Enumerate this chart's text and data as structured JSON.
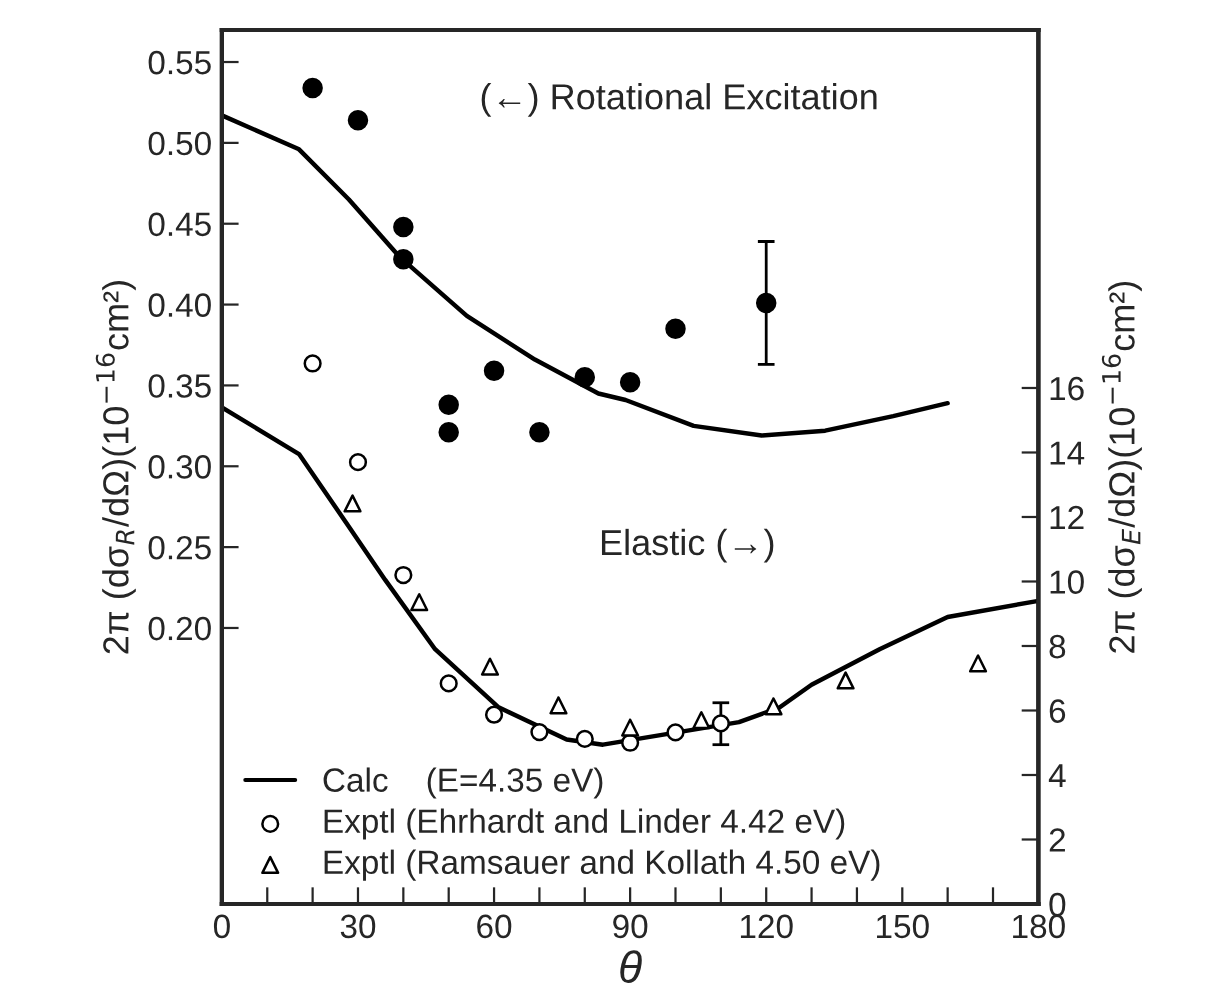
{
  "chart_data": {
    "type": "scatter",
    "xlabel": "θ",
    "ylabel": "2π (dσ$_{R}$/dΩ)(10$^{−16}$cm²)",
    "y2label": "2π (dσ$_{E}$/dΩ)(10$^{−16}$cm²)",
    "annotations": [
      "(←) Rotational Excitation",
      "Elastic (→)"
    ],
    "xlim": [
      0,
      180
    ],
    "xticks": [
      0,
      {
        "value": 10,
        "label": null
      },
      {
        "value": 20,
        "label": null
      },
      30,
      {
        "value": 40,
        "label": null
      },
      {
        "value": 50,
        "label": null
      },
      60,
      {
        "value": 70,
        "label": null
      },
      {
        "value": 80,
        "label": null
      },
      90,
      {
        "value": 100,
        "label": null
      },
      {
        "value": 110,
        "label": null
      },
      120,
      {
        "value": 130,
        "label": null
      },
      {
        "value": 140,
        "label": null
      },
      150,
      {
        "value": 160,
        "label": null
      },
      {
        "value": 170,
        "label": null
      },
      180
    ],
    "ylim": [
      0.0293,
      0.5698
    ],
    "yticks": [
      {
        "value": 0.2,
        "label": "0.20"
      },
      {
        "value": 0.25,
        "label": "0.25"
      },
      {
        "value": 0.3,
        "label": "0.30"
      },
      {
        "value": 0.35,
        "label": "0.35"
      },
      {
        "value": 0.4,
        "label": "0.40"
      },
      {
        "value": 0.45,
        "label": "0.45"
      },
      {
        "value": 0.5,
        "label": "0.50"
      },
      {
        "value": 0.55,
        "label": "0.55"
      }
    ],
    "y2lim": [
      0,
      27.1
    ],
    "y2ticks": [
      0,
      2,
      4,
      6,
      8,
      10,
      12,
      14,
      16
    ],
    "legend": "bottom left",
    "series": [
      {
        "type": "line",
        "name": "Calc    (E=4.35 eV)",
        "color": "#000000",
        "x": [
          0,
          17,
          28,
          39,
          54,
          69,
          83,
          89,
          104,
          119,
          133,
          148,
          160
        ],
        "values": [
          0.517,
          0.496,
          0.465,
          0.43,
          0.393,
          0.366,
          0.345,
          0.341,
          0.325,
          0.319,
          0.322,
          0.331,
          0.339
        ]
      },
      {
        "type": "line",
        "axis": "y2",
        "color": "#000000",
        "x": [
          0,
          17,
          28,
          36,
          47,
          61,
          76,
          84,
          114,
          123,
          130,
          145,
          160,
          180
        ],
        "values": [
          15.4,
          13.95,
          11.7,
          10.05,
          7.9,
          6.1,
          5.1,
          4.94,
          5.64,
          6.1,
          6.8,
          7.9,
          8.9,
          9.4
        ]
      },
      {
        "marker": "circle",
        "color": "#000000",
        "x": [
          20,
          30,
          40,
          40,
          50,
          50,
          60,
          70,
          80,
          90,
          100,
          120
        ],
        "values": [
          0.534,
          0.514,
          0.448,
          0.428,
          0.338,
          0.321,
          0.359,
          0.321,
          0.355,
          0.352,
          0.385,
          0.401
        ],
        "errors": [
          null,
          null,
          null,
          null,
          null,
          null,
          null,
          null,
          null,
          null,
          null,
          [
            0.363,
            0.439
          ]
        ]
      },
      {
        "axis": "y2",
        "marker": "circle",
        "name": "Exptl (Ehrhardt and Linder 4.42 eV)",
        "color": "#000000",
        "x": [
          20,
          30,
          40,
          50,
          60,
          70,
          80,
          90,
          100,
          110
        ],
        "values": [
          16.76,
          13.7,
          10.2,
          6.84,
          5.87,
          5.33,
          5.12,
          5.0,
          5.32,
          5.6
        ],
        "errors": [
          null,
          null,
          null,
          null,
          null,
          null,
          null,
          null,
          null,
          [
            4.94,
            6.24
          ]
        ]
      },
      {
        "axis": "y2",
        "marker": "triangle",
        "name": "Exptl (Ramsauer and Kollath 4.50 eV)",
        "color": "#000000",
        "x": [
          28.8,
          43.5,
          59.1,
          74.2,
          90,
          105.7,
          121.6,
          137.5,
          166.7
        ],
        "values": [
          12.42,
          9.36,
          7.36,
          6.16,
          5.47,
          5.7,
          6.13,
          6.93,
          7.46
        ]
      }
    ]
  }
}
